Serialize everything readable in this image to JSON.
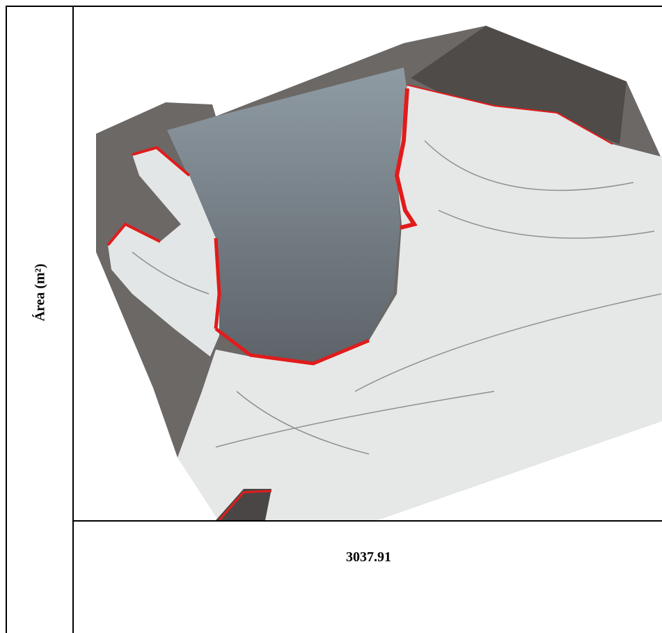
{
  "table": {
    "header_label": "Área (m²)",
    "value": "3037.91"
  }
}
